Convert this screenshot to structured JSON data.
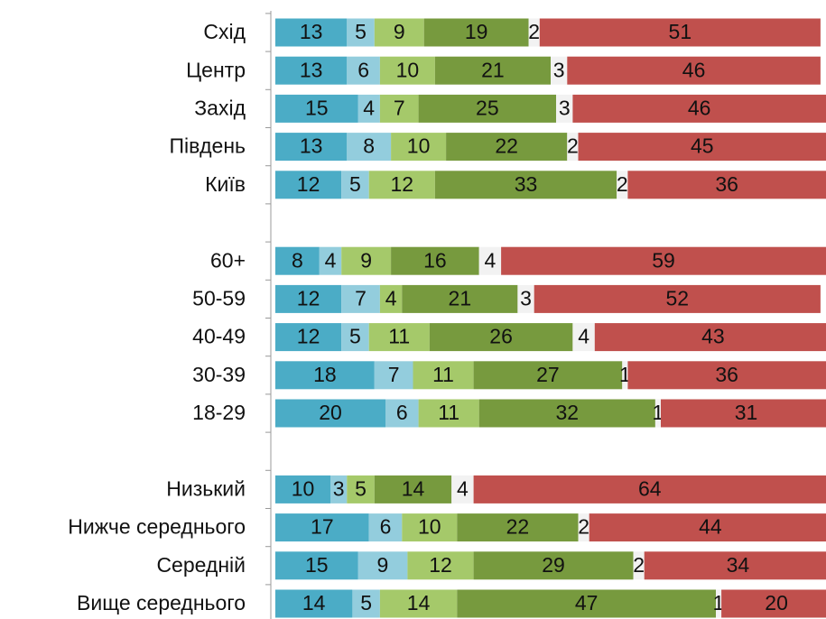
{
  "chart_data": {
    "type": "stacked-bar-horizontal",
    "categories": [
      "Схід",
      "Центр",
      "Захід",
      "Південь",
      "Київ",
      null,
      "60+",
      "50-59",
      "40-49",
      "30-39",
      "18-29",
      null,
      "Низький",
      "Нижче середнього",
      "Середній",
      "Вище середнього"
    ],
    "xlim": [
      0,
      100
    ],
    "series": [
      {
        "color": "#4bacc6",
        "values": [
          13,
          13,
          15,
          13,
          12,
          null,
          8,
          12,
          12,
          18,
          20,
          null,
          10,
          17,
          15,
          14
        ]
      },
      {
        "color": "#93cddd",
        "values": [
          5,
          6,
          4,
          8,
          5,
          null,
          4,
          7,
          5,
          7,
          6,
          null,
          3,
          6,
          9,
          5
        ]
      },
      {
        "color": "#a5c96a",
        "values": [
          9,
          10,
          7,
          10,
          12,
          null,
          9,
          4,
          11,
          11,
          11,
          null,
          5,
          10,
          12,
          14
        ]
      },
      {
        "color": "#779a3e",
        "values": [
          19,
          21,
          25,
          22,
          33,
          null,
          16,
          21,
          26,
          27,
          32,
          null,
          14,
          22,
          29,
          47
        ]
      },
      {
        "color": "#f2f2f2",
        "values": [
          2,
          3,
          3,
          2,
          2,
          null,
          4,
          3,
          4,
          1,
          1,
          null,
          4,
          2,
          2,
          1
        ]
      },
      {
        "color": "#c0504d",
        "values": [
          51,
          46,
          46,
          45,
          36,
          null,
          59,
          52,
          43,
          36,
          31,
          null,
          64,
          44,
          34,
          20
        ]
      }
    ]
  }
}
